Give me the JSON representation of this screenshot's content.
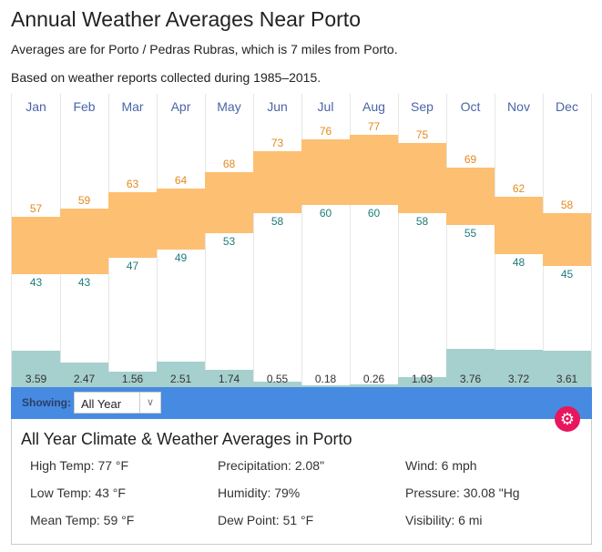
{
  "title": "Annual Weather Averages Near Porto",
  "subtitle1": "Averages are for Porto / Pedras Rubras, which is 7 miles from Porto.",
  "subtitle2": "Based on weather reports collected during 1985–2015.",
  "chart_data": {
    "type": "bar",
    "categories": [
      "Jan",
      "Feb",
      "Mar",
      "Apr",
      "May",
      "Jun",
      "Jul",
      "Aug",
      "Sep",
      "Oct",
      "Nov",
      "Dec"
    ],
    "series": [
      {
        "name": "High Temp (°F)",
        "values": [
          57,
          59,
          63,
          64,
          68,
          73,
          76,
          77,
          75,
          69,
          62,
          58
        ]
      },
      {
        "name": "Low Temp (°F)",
        "values": [
          43,
          43,
          47,
          49,
          53,
          58,
          60,
          60,
          58,
          55,
          48,
          45
        ]
      },
      {
        "name": "Precipitation (in)",
        "values": [
          "3.59",
          "2.47",
          "1.56",
          "2.51",
          "1.74",
          "0.55",
          "0.18",
          "0.26",
          "1.03",
          "3.76",
          "3.72",
          "3.61"
        ]
      }
    ]
  },
  "toolbar": {
    "showing_label": "Showing:",
    "selected": "All Year"
  },
  "panel": {
    "title": "All Year Climate & Weather Averages in Porto",
    "stats": [
      [
        "High Temp: 77 °F",
        "Precipitation: 2.08\"",
        "Wind: 6 mph"
      ],
      [
        "Low Temp: 43 °F",
        "Humidity: 79%",
        "Pressure: 30.08 \"Hg"
      ],
      [
        "Mean Temp: 59 °F",
        "Dew Point: 51 °F",
        "Visibility: 6 mi"
      ]
    ]
  },
  "colors": {
    "high": "#fdbf72",
    "precip": "#a6d0cd",
    "bar": "#468ae1",
    "gear": "#e8175d"
  }
}
